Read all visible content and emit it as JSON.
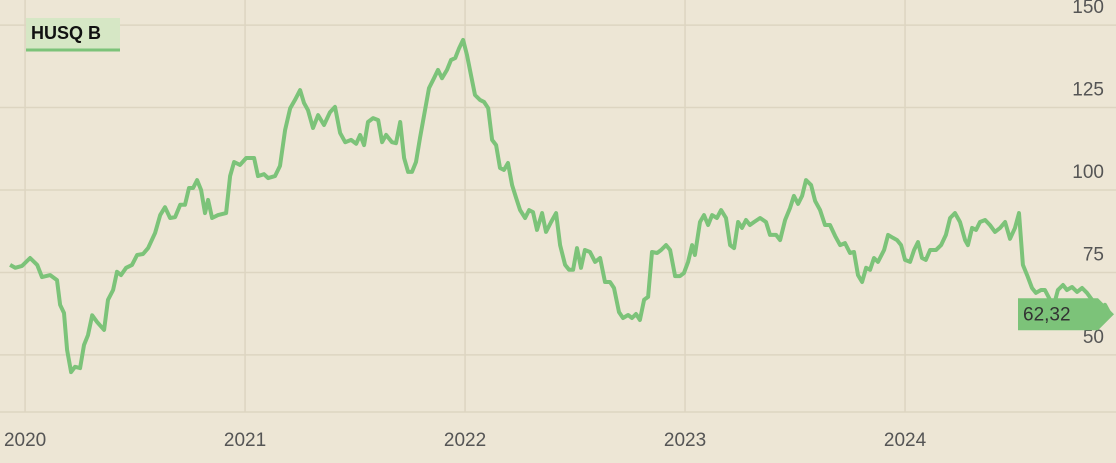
{
  "chart_data": {
    "type": "line",
    "x": [
      2019.932,
      2019.955,
      2019.986,
      2020.023,
      2020.055,
      2020.077,
      2020.114,
      2020.145,
      2020.159,
      2020.177,
      2020.191,
      2020.209,
      2020.227,
      2020.25,
      2020.268,
      2020.286,
      2020.305,
      2020.327,
      2020.359,
      2020.377,
      2020.4,
      2020.418,
      2020.436,
      2020.459,
      2020.486,
      2020.509,
      2020.536,
      2020.559,
      2020.591,
      2020.614,
      2020.636,
      2020.659,
      2020.682,
      2020.705,
      2020.727,
      2020.745,
      2020.764,
      2020.782,
      2020.8,
      2020.818,
      2020.832,
      2020.85,
      2020.877,
      2020.914,
      2020.932,
      2020.95,
      2020.977,
      2021.005,
      2021.041,
      2021.059,
      2021.086,
      2021.105,
      2021.136,
      2021.159,
      2021.182,
      2021.205,
      2021.227,
      2021.25,
      2021.268,
      2021.286,
      2021.309,
      2021.332,
      2021.359,
      2021.386,
      2021.409,
      2021.432,
      2021.455,
      2021.482,
      2021.505,
      2021.523,
      2021.541,
      2021.559,
      2021.582,
      2021.605,
      2021.623,
      2021.641,
      2021.668,
      2021.686,
      2021.705,
      2021.723,
      2021.741,
      2021.759,
      2021.777,
      2021.795,
      2021.818,
      2021.836,
      2021.859,
      2021.877,
      2021.895,
      2021.918,
      2021.936,
      2021.955,
      2021.973,
      2021.991,
      2022.009,
      2022.027,
      2022.045,
      2022.068,
      2022.086,
      2022.105,
      2022.123,
      2022.141,
      2022.159,
      2022.177,
      2022.195,
      2022.214,
      2022.232,
      2022.25,
      2022.273,
      2022.291,
      2022.309,
      2022.327,
      2022.35,
      2022.368,
      2022.391,
      2022.414,
      2022.432,
      2022.455,
      2022.473,
      2022.491,
      2022.509,
      2022.527,
      2022.545,
      2022.568,
      2022.591,
      2022.614,
      2022.636,
      2022.659,
      2022.677,
      2022.7,
      2022.718,
      2022.741,
      2022.759,
      2022.777,
      2022.795,
      2022.814,
      2022.832,
      2022.85,
      2022.873,
      2022.891,
      2022.914,
      2022.932,
      2022.955,
      2022.977,
      2022.995,
      2023.014,
      2023.032,
      2023.045,
      2023.068,
      2023.086,
      2023.105,
      2023.123,
      2023.145,
      2023.164,
      2023.186,
      2023.205,
      2023.223,
      2023.241,
      2023.259,
      2023.277,
      2023.295,
      2023.314,
      2023.341,
      2023.368,
      2023.386,
      2023.414,
      2023.432,
      2023.455,
      2023.477,
      2023.495,
      2023.514,
      2023.532,
      2023.55,
      2023.573,
      2023.591,
      2023.614,
      2023.636,
      2023.659,
      2023.682,
      2023.705,
      2023.727,
      2023.75,
      2023.768,
      2023.786,
      2023.805,
      2023.823,
      2023.841,
      2023.859,
      2023.877,
      2023.905,
      2023.923,
      2023.945,
      2023.964,
      2023.982,
      2024.0,
      2024.023,
      2024.041,
      2024.059,
      2024.077,
      2024.095,
      2024.114,
      2024.141,
      2024.164,
      2024.186,
      2024.205,
      2024.227,
      2024.25,
      2024.273,
      2024.286,
      2024.305,
      2024.323,
      2024.341,
      2024.364,
      2024.386,
      2024.409,
      2024.432,
      2024.455,
      2024.477,
      2024.5,
      2024.518,
      2024.536,
      2024.555,
      2024.577,
      2024.595,
      2024.618,
      2024.636,
      2024.659,
      2024.677,
      2024.695,
      2024.718,
      2024.736,
      2024.759,
      2024.782,
      2024.805,
      2024.827,
      2024.85,
      2024.873,
      2024.891,
      2024.909,
      2024.932
    ],
    "series": [
      {
        "name": "HUSQ B",
        "color": "#7cc379",
        "values": [
          77.3,
          76.4,
          77,
          79.4,
          77.3,
          73.6,
          74.2,
          72.7,
          65.2,
          62.7,
          51.5,
          44.8,
          46.4,
          46,
          53,
          56,
          62,
          60,
          57.6,
          66.7,
          69.7,
          75.2,
          74.2,
          76.4,
          77.3,
          80.3,
          80.6,
          82.4,
          87,
          92.4,
          94.8,
          91.5,
          91.8,
          95.5,
          95.5,
          100.6,
          100.6,
          103,
          100,
          93,
          97,
          91.5,
          92.4,
          93,
          104.2,
          108.5,
          107.6,
          109.7,
          109.7,
          104.2,
          104.8,
          103.6,
          104.2,
          107.3,
          118.2,
          124.8,
          127.3,
          130.3,
          126.4,
          124.2,
          118.8,
          122.7,
          119.7,
          123.6,
          125.2,
          117.3,
          114.5,
          115.2,
          114,
          116.7,
          113.6,
          120.6,
          121.8,
          121.2,
          114.5,
          116.7,
          114.5,
          114.2,
          120.6,
          109.7,
          105.5,
          105.5,
          108.5,
          115.8,
          124.2,
          130.9,
          133.9,
          136.4,
          133.9,
          136.4,
          139.4,
          140,
          143,
          145.5,
          140.9,
          134.8,
          128.8,
          127.3,
          126.7,
          124.8,
          115.2,
          113.6,
          106.7,
          106.1,
          108.2,
          101.5,
          97.6,
          93.9,
          91.5,
          93.9,
          93.3,
          87.9,
          93,
          87.3,
          90.3,
          93,
          83.3,
          77.3,
          75.8,
          75.8,
          82.4,
          76.4,
          81.8,
          81.2,
          78.2,
          79.4,
          72.1,
          72.1,
          70.3,
          63,
          61.2,
          62.1,
          61.2,
          62.4,
          60.6,
          66.7,
          67.6,
          81.2,
          80.9,
          81.8,
          83.3,
          81.8,
          73.9,
          73.9,
          74.8,
          78.2,
          83.3,
          80.3,
          90.3,
          92.4,
          89.4,
          92.4,
          91.5,
          93.9,
          91.5,
          83.3,
          82.4,
          90.3,
          88.5,
          90.9,
          89.4,
          90.3,
          91.5,
          90.3,
          86.4,
          86.4,
          84.8,
          90.9,
          94.5,
          98.2,
          95.8,
          98.2,
          103,
          101.5,
          96.7,
          93.9,
          89.4,
          89.4,
          86.1,
          83.3,
          83.9,
          80.9,
          81.2,
          74.2,
          72.1,
          76.4,
          75.8,
          79.4,
          78.2,
          81.8,
          86.4,
          85.5,
          84.8,
          83.3,
          78.8,
          78.2,
          81.8,
          84.2,
          79.4,
          78.8,
          81.8,
          81.8,
          83.3,
          86.4,
          91.5,
          93,
          90.3,
          84.8,
          83.3,
          88.5,
          87.9,
          90.3,
          90.9,
          89.4,
          87.3,
          88.5,
          90.3,
          85.2,
          88.5,
          93,
          77.3,
          74.2,
          70.3,
          68.8,
          69.7,
          69.7,
          66.7,
          65.2,
          69.7,
          71.2,
          69.7,
          70.6,
          69.1,
          70.3,
          68.8,
          66.7,
          65.2,
          61.2,
          65.2,
          62.32
        ]
      }
    ],
    "end_label": {
      "value": 62.32,
      "label": "62,32"
    },
    "xlim": [
      2019.886,
      2024.959
    ],
    "xticks": [
      2020,
      2021,
      2022,
      2023,
      2024
    ],
    "ylim": [
      32.7,
      157.6
    ],
    "yticks": [
      50,
      75,
      100,
      125,
      150
    ],
    "grid": true
  }
}
